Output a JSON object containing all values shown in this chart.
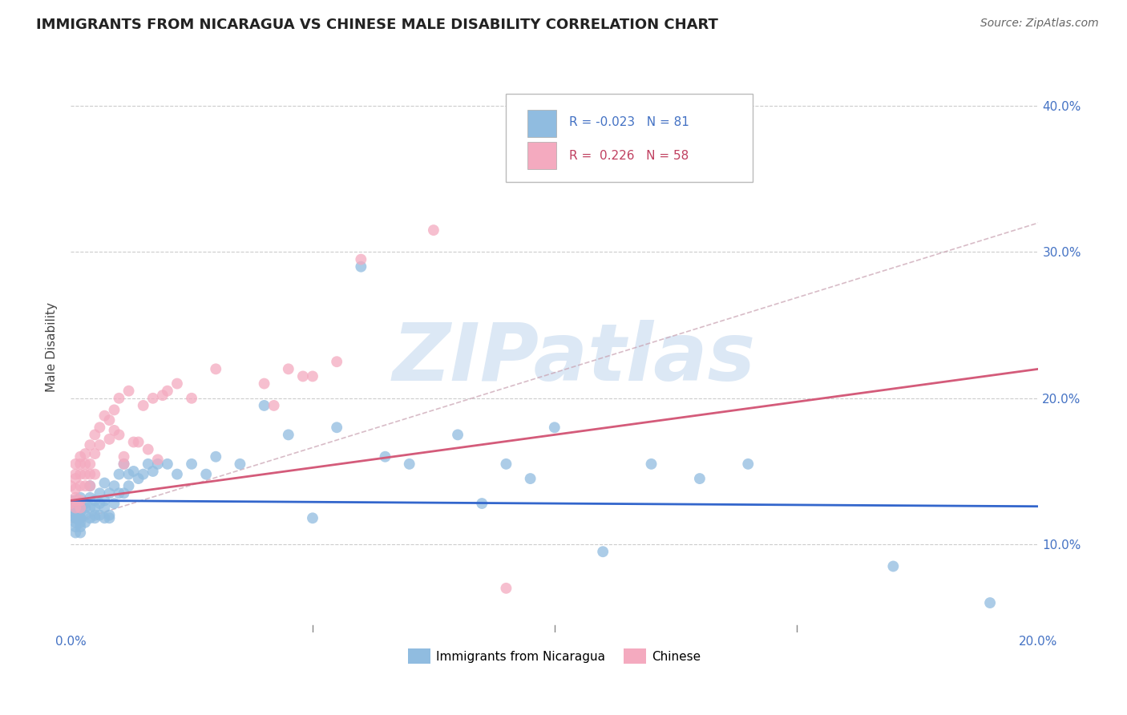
{
  "title": "IMMIGRANTS FROM NICARAGUA VS CHINESE MALE DISABILITY CORRELATION CHART",
  "source": "Source: ZipAtlas.com",
  "ylabel": "Male Disability",
  "watermark": "ZIPatlas",
  "blue_series_label": "Immigrants from Nicaragua",
  "pink_series_label": "Chinese",
  "blue_color": "#90bce0",
  "pink_color": "#f4aabf",
  "blue_line_color": "#3366cc",
  "pink_line_color": "#d45b7a",
  "pink_dash_color": "#c8a0b0",
  "legend_R_blue": "-0.023",
  "legend_N_blue": "81",
  "legend_R_pink": "0.226",
  "legend_N_pink": "58",
  "xlim": [
    0.0,
    0.2
  ],
  "ylim": [
    0.04,
    0.43
  ],
  "xtick_positions": [
    0.0,
    0.2
  ],
  "xtick_labels": [
    "0.0%",
    "20.0%"
  ],
  "ytick_positions": [
    0.1,
    0.2,
    0.3,
    0.4
  ],
  "ytick_labels": [
    "10.0%",
    "20.0%",
    "30.0%",
    "40.0%"
  ],
  "grid_color": "#cccccc",
  "background_color": "#ffffff",
  "title_fontsize": 13,
  "watermark_color": "#dce8f5",
  "watermark_fontsize": 72,
  "blue_x": [
    0.0,
    0.0,
    0.001,
    0.001,
    0.001,
    0.001,
    0.001,
    0.001,
    0.001,
    0.001,
    0.001,
    0.001,
    0.002,
    0.002,
    0.002,
    0.002,
    0.002,
    0.002,
    0.002,
    0.002,
    0.002,
    0.003,
    0.003,
    0.003,
    0.003,
    0.004,
    0.004,
    0.004,
    0.004,
    0.005,
    0.005,
    0.005,
    0.005,
    0.006,
    0.006,
    0.006,
    0.007,
    0.007,
    0.007,
    0.007,
    0.008,
    0.008,
    0.008,
    0.009,
    0.009,
    0.01,
    0.01,
    0.011,
    0.011,
    0.012,
    0.012,
    0.013,
    0.014,
    0.015,
    0.016,
    0.017,
    0.018,
    0.02,
    0.022,
    0.025,
    0.028,
    0.03,
    0.035,
    0.04,
    0.045,
    0.05,
    0.055,
    0.06,
    0.065,
    0.07,
    0.08,
    0.085,
    0.09,
    0.095,
    0.1,
    0.11,
    0.12,
    0.13,
    0.14,
    0.17,
    0.19
  ],
  "blue_y": [
    0.13,
    0.125,
    0.115,
    0.12,
    0.128,
    0.118,
    0.122,
    0.112,
    0.108,
    0.125,
    0.118,
    0.13,
    0.125,
    0.118,
    0.112,
    0.122,
    0.108,
    0.115,
    0.128,
    0.118,
    0.132,
    0.125,
    0.115,
    0.12,
    0.128,
    0.132,
    0.118,
    0.125,
    0.14,
    0.13,
    0.118,
    0.12,
    0.125,
    0.135,
    0.12,
    0.128,
    0.142,
    0.125,
    0.118,
    0.13,
    0.135,
    0.12,
    0.118,
    0.14,
    0.128,
    0.148,
    0.135,
    0.155,
    0.135,
    0.148,
    0.14,
    0.15,
    0.145,
    0.148,
    0.155,
    0.15,
    0.155,
    0.155,
    0.148,
    0.155,
    0.148,
    0.16,
    0.155,
    0.195,
    0.175,
    0.118,
    0.18,
    0.29,
    0.16,
    0.155,
    0.175,
    0.128,
    0.155,
    0.145,
    0.18,
    0.095,
    0.155,
    0.145,
    0.155,
    0.085,
    0.06
  ],
  "pink_x": [
    0.0,
    0.0,
    0.001,
    0.001,
    0.001,
    0.001,
    0.001,
    0.001,
    0.001,
    0.002,
    0.002,
    0.002,
    0.002,
    0.002,
    0.002,
    0.003,
    0.003,
    0.003,
    0.003,
    0.004,
    0.004,
    0.004,
    0.004,
    0.005,
    0.005,
    0.005,
    0.006,
    0.006,
    0.007,
    0.008,
    0.008,
    0.009,
    0.009,
    0.01,
    0.01,
    0.011,
    0.011,
    0.012,
    0.013,
    0.014,
    0.015,
    0.016,
    0.017,
    0.018,
    0.019,
    0.02,
    0.022,
    0.025,
    0.03,
    0.04,
    0.042,
    0.045,
    0.048,
    0.05,
    0.055,
    0.06,
    0.075,
    0.09
  ],
  "pink_y": [
    0.14,
    0.128,
    0.132,
    0.145,
    0.125,
    0.155,
    0.148,
    0.13,
    0.138,
    0.155,
    0.14,
    0.13,
    0.148,
    0.125,
    0.16,
    0.162,
    0.148,
    0.155,
    0.14,
    0.168,
    0.155,
    0.148,
    0.14,
    0.175,
    0.162,
    0.148,
    0.18,
    0.168,
    0.188,
    0.185,
    0.172,
    0.192,
    0.178,
    0.2,
    0.175,
    0.155,
    0.16,
    0.205,
    0.17,
    0.17,
    0.195,
    0.165,
    0.2,
    0.158,
    0.202,
    0.205,
    0.21,
    0.2,
    0.22,
    0.21,
    0.195,
    0.22,
    0.215,
    0.215,
    0.225,
    0.295,
    0.315,
    0.07
  ]
}
